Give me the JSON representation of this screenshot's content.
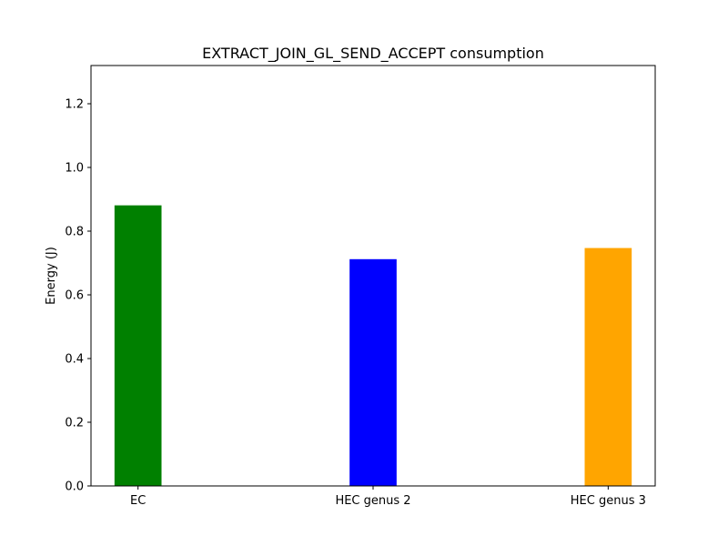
{
  "chart_data": {
    "type": "bar",
    "title": "EXTRACT_JOIN_GL_SEND_ACCEPT consumption",
    "xlabel": "",
    "ylabel": "Energy (J)",
    "categories": [
      "EC",
      "HEC genus 2",
      "HEC genus 3"
    ],
    "values": [
      0.881,
      0.712,
      0.747
    ],
    "colors": [
      "#008000",
      "#0000ff",
      "#ffa500"
    ],
    "ylim": [
      0,
      1.32
    ],
    "yticks": [
      0.0,
      0.2,
      0.4,
      0.6,
      0.8,
      1.0,
      1.2
    ],
    "ytick_labels": [
      "0.0",
      "0.2",
      "0.4",
      "0.6",
      "0.8",
      "1.0",
      "1.2"
    ],
    "grid": false,
    "legend": "none"
  }
}
